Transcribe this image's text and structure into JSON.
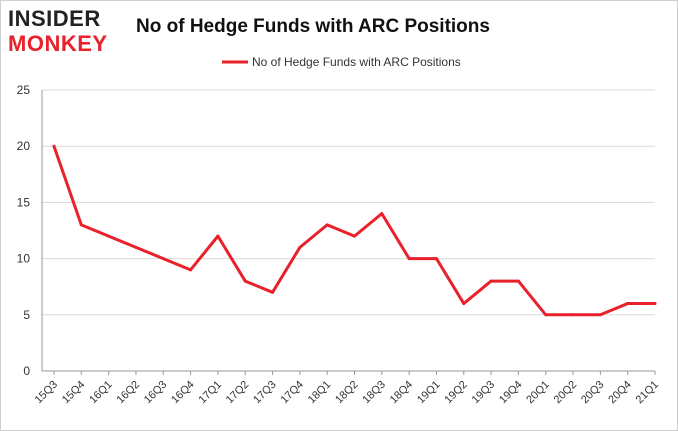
{
  "logo": {
    "line1": "INSIDER",
    "line2": "MONKEY"
  },
  "colors": {
    "series": "#e8212a",
    "grid": "#d9d9d9",
    "axis": "#999999"
  },
  "chart_data": {
    "type": "line",
    "title": "No of Hedge Funds with ARC Positions",
    "xlabel": "",
    "ylabel": "",
    "x": [
      "15Q3",
      "15Q4",
      "16Q1",
      "16Q2",
      "16Q3",
      "16Q4",
      "17Q1",
      "17Q2",
      "17Q3",
      "17Q4",
      "18Q1",
      "18Q2",
      "18Q3",
      "18Q4",
      "19Q1",
      "19Q2",
      "19Q3",
      "19Q4",
      "20Q1",
      "20Q2",
      "20Q3",
      "20Q4",
      "21Q1"
    ],
    "series": [
      {
        "name": "No of Hedge Funds with ARC Positions",
        "values": [
          20,
          13,
          12,
          11,
          10,
          9,
          12,
          8,
          7,
          11,
          13,
          12,
          14,
          10,
          10,
          6,
          8,
          8,
          5,
          5,
          5,
          6,
          6
        ]
      }
    ],
    "ylim": [
      0,
      25
    ],
    "yticks": [
      0,
      5,
      10,
      15,
      20,
      25
    ],
    "grid": true,
    "legend": "top-center"
  }
}
